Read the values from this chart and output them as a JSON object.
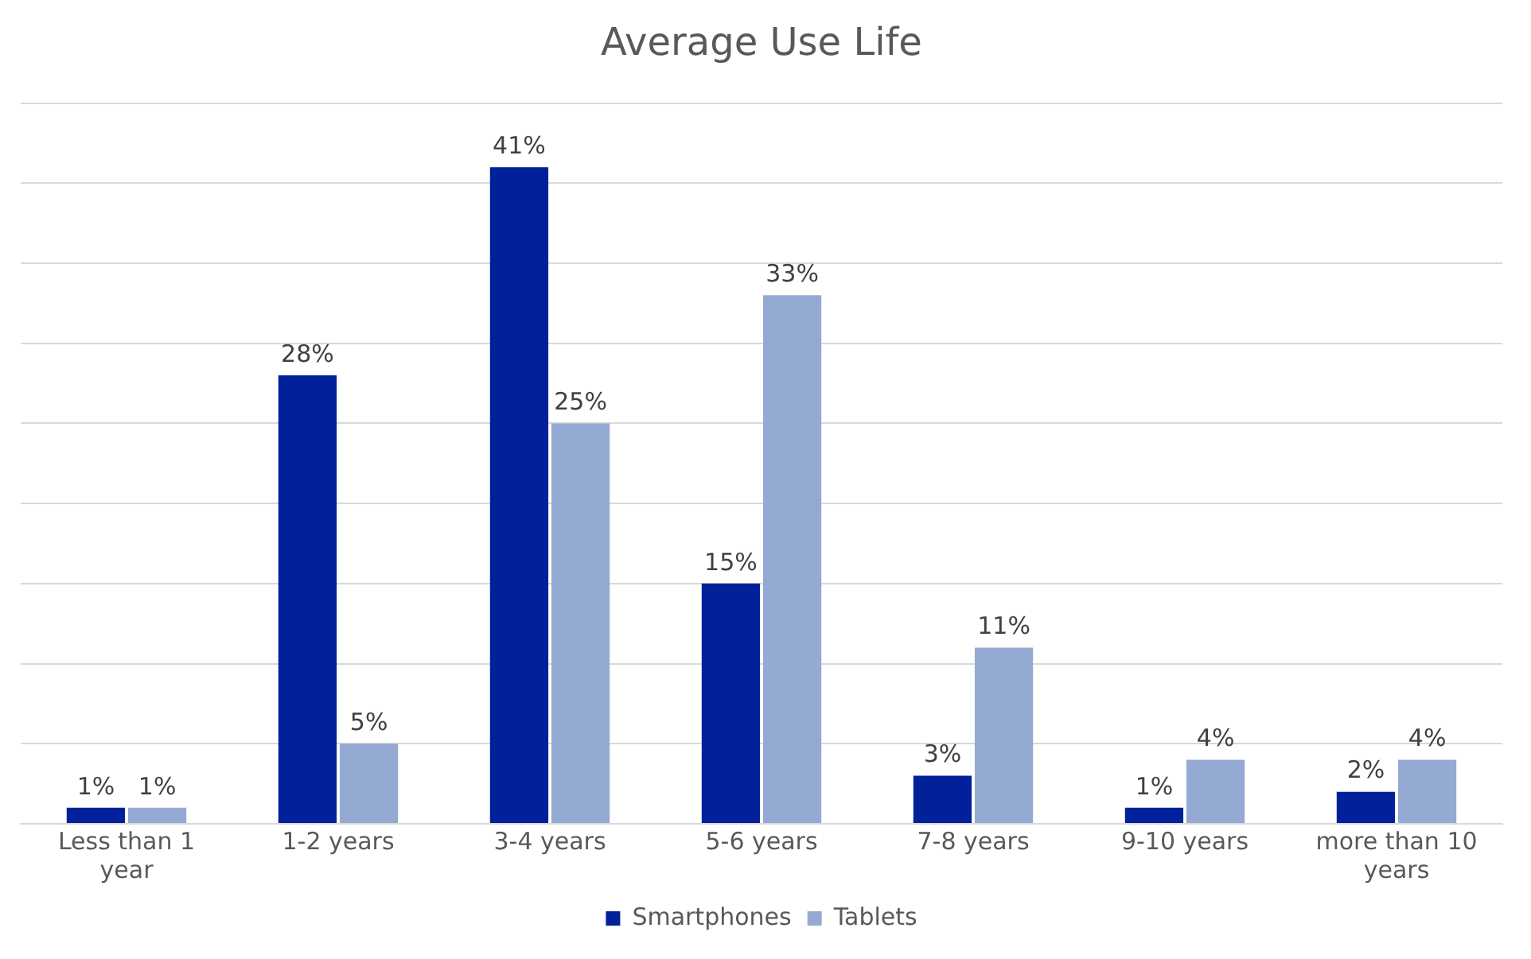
{
  "chart_data": {
    "type": "bar",
    "title": "Average Use Life",
    "categories": [
      "Less than 1 year",
      "1-2 years",
      "3-4 years",
      "5-6 years",
      "7-8 years",
      "9-10 years",
      "more than 10 years"
    ],
    "series": [
      {
        "name": "Smartphones",
        "color": "#002199",
        "values": [
          1,
          28,
          41,
          15,
          3,
          1,
          2
        ],
        "value_labels": [
          "1%",
          "28%",
          "41%",
          "15%",
          "3%",
          "1%",
          "2%"
        ]
      },
      {
        "name": "Tablets",
        "color": "#95aad3",
        "values": [
          1,
          5,
          25,
          33,
          11,
          4,
          4
        ],
        "value_labels": [
          "1%",
          "5%",
          "25%",
          "33%",
          "11%",
          "4%",
          "4%"
        ]
      }
    ],
    "ylim": [
      0,
      45
    ],
    "yticks": [
      {
        "value": 0,
        "label": null
      },
      {
        "value": 5,
        "label": null
      },
      {
        "value": 10,
        "label": null
      },
      {
        "value": 15,
        "label": null
      },
      {
        "value": 20,
        "label": null
      },
      {
        "value": 25,
        "label": null
      },
      {
        "value": 30,
        "label": null
      },
      {
        "value": 35,
        "label": null
      },
      {
        "value": 40,
        "label": null
      },
      {
        "value": 45,
        "label": null
      }
    ],
    "tick_labels": "x",
    "grid": "y",
    "legend": "bottom"
  }
}
